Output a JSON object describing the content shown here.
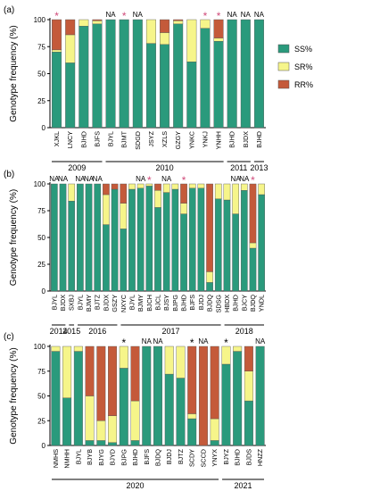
{
  "colors": {
    "SS": "#2a9a7c",
    "SR": "#f6f58a",
    "RR": "#c45a3a",
    "star_a": "#d04a7a",
    "star_b": "#d04a7a",
    "star_c": "#000000"
  },
  "legend": [
    {
      "key": "SS",
      "label": "SS%"
    },
    {
      "key": "SR",
      "label": "SR%"
    },
    {
      "key": "RR",
      "label": "RR%"
    }
  ],
  "chart_data": [
    {
      "type": "bar",
      "stacked": true,
      "panel_label": "(a)",
      "ylabel": "Genotype frequency (%)",
      "ylim": [
        0,
        100
      ],
      "yticks": [
        "0",
        "25",
        "50",
        "75",
        "100"
      ],
      "categories": [
        "XJKL",
        "LNCY",
        "BJHD",
        "BJFS",
        "BJYL",
        "BJMT",
        "SDGD",
        "JSYZ",
        "XZLS",
        "GZGY",
        "YNKC",
        "YNKJ",
        "YNHH",
        "BJHD",
        "BJDX",
        "BJHD"
      ],
      "series": [
        {
          "name": "SS%",
          "values": [
            70,
            60,
            94,
            96,
            100,
            100,
            100,
            78,
            77,
            96,
            61,
            92,
            80,
            100,
            100,
            100
          ]
        },
        {
          "name": "SR%",
          "values": [
            2,
            26,
            6,
            3,
            0,
            0,
            0,
            22,
            11,
            3,
            39,
            8,
            3,
            0,
            0,
            0
          ]
        },
        {
          "name": "RR%",
          "values": [
            28,
            14,
            0,
            1,
            0,
            0,
            0,
            0,
            12,
            1,
            0,
            0,
            17,
            0,
            0,
            0
          ]
        }
      ],
      "marks": [
        "*",
        "",
        "",
        "",
        "NA",
        "*",
        "NA",
        "",
        "",
        "",
        "",
        "*",
        "*",
        "NA",
        "NA",
        "NA"
      ],
      "years": [
        {
          "label": "2009",
          "from": 0,
          "to": 3
        },
        {
          "label": "2010",
          "from": 4,
          "to": 12
        },
        {
          "label": "2011",
          "from": 13,
          "to": 14
        },
        {
          "label": "2013",
          "from": 15,
          "to": 15
        }
      ]
    },
    {
      "type": "bar",
      "stacked": true,
      "panel_label": "(b)",
      "ylabel": "Genotype frequency (%)",
      "ylim": [
        0,
        100
      ],
      "yticks": [
        "0",
        "25",
        "50",
        "75",
        "100"
      ],
      "categories": [
        "BJYL",
        "BJDX",
        "SXBJ",
        "BJYL",
        "BJMY",
        "BJTZ",
        "BJDX",
        "GSZY",
        "NXYC",
        "BJYL",
        "BJMY",
        "BJCH",
        "BJCL",
        "BJSY",
        "BJPG",
        "BJHD",
        "BJFS",
        "BJDJ",
        "BJDQ",
        "SDSG",
        "HBDX",
        "BJHD",
        "BJCY",
        "BJDQ",
        "YNDL"
      ],
      "series": [
        {
          "name": "SS%",
          "values": [
            100,
            100,
            84,
            100,
            100,
            100,
            62,
            95,
            58,
            95,
            96,
            98,
            78,
            92,
            95,
            72,
            96,
            96,
            8,
            86,
            85,
            72,
            94,
            40,
            90
          ]
        },
        {
          "name": "SR%",
          "values": [
            0,
            0,
            16,
            0,
            0,
            0,
            28,
            0,
            24,
            5,
            4,
            2,
            16,
            8,
            5,
            10,
            4,
            4,
            10,
            14,
            15,
            28,
            6,
            5,
            10
          ]
        },
        {
          "name": "RR%",
          "values": [
            0,
            0,
            0,
            0,
            0,
            0,
            10,
            5,
            18,
            0,
            0,
            0,
            6,
            0,
            0,
            18,
            0,
            0,
            82,
            0,
            0,
            0,
            0,
            55,
            0
          ]
        }
      ],
      "marks": [
        "NA",
        "NA",
        "",
        "NA",
        "NA",
        "NA",
        "",
        "",
        "",
        "",
        "NA",
        "*",
        "",
        "NA",
        "",
        "*",
        "",
        "",
        "",
        "",
        "",
        "NA",
        "NA",
        "*",
        ""
      ],
      "years": [
        {
          "label": "2014",
          "from": 0,
          "to": 1
        },
        {
          "label": "2015",
          "from": 2,
          "to": 2
        },
        {
          "label": "2016",
          "from": 3,
          "to": 7
        },
        {
          "label": "2017",
          "from": 8,
          "to": 19
        },
        {
          "label": "2018",
          "from": 20,
          "to": 24
        }
      ]
    },
    {
      "type": "bar",
      "stacked": true,
      "panel_label": "(c)",
      "ylabel": "Genotype frequency (%)",
      "ylim": [
        0,
        100
      ],
      "yticks": [
        "0",
        "25",
        "50",
        "75",
        "100"
      ],
      "categories": [
        "NMHS",
        "NMHH",
        "BJYL",
        "BJYB",
        "BJYG",
        "BJYD",
        "BJPG",
        "BJHD",
        "BJFS",
        "BJDQ",
        "BJDJ",
        "BJTZ",
        "SCDY",
        "SCCD",
        "YNYX",
        "BJYZ",
        "BJHD",
        "BJDS",
        "HNZZ"
      ],
      "series": [
        {
          "name": "SS%",
          "values": [
            95,
            48,
            95,
            5,
            5,
            3,
            78,
            5,
            100,
            100,
            72,
            68,
            27,
            0,
            5,
            82,
            95,
            45,
            100
          ]
        },
        {
          "name": "SR%",
          "values": [
            5,
            52,
            5,
            45,
            20,
            27,
            22,
            40,
            0,
            0,
            28,
            32,
            5,
            0,
            22,
            18,
            5,
            30,
            0
          ]
        },
        {
          "name": "RR%",
          "values": [
            0,
            0,
            0,
            50,
            75,
            70,
            0,
            55,
            0,
            0,
            0,
            0,
            68,
            100,
            73,
            0,
            0,
            25,
            0
          ]
        }
      ],
      "marks": [
        "",
        "",
        "",
        "",
        "",
        "",
        "*",
        "",
        "NA",
        "NA",
        "",
        "",
        "*",
        "NA",
        "",
        "*",
        "",
        "",
        "NA"
      ],
      "years": [
        {
          "label": "2020",
          "from": 0,
          "to": 14
        },
        {
          "label": "2021",
          "from": 15,
          "to": 18
        }
      ]
    }
  ]
}
